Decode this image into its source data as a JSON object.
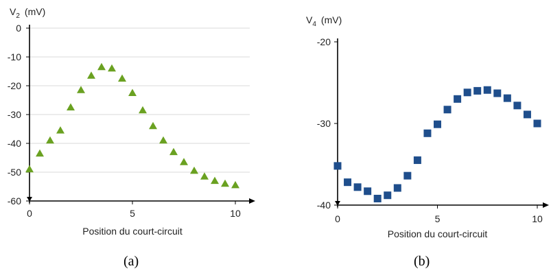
{
  "chart_data": [
    {
      "type": "scatter",
      "panel_label": "(a)",
      "ylabel_main": "V",
      "ylabel_sub": "2",
      "ylabel_unit": "(mV)",
      "xlabel": "Position du court-circuit",
      "xlim": [
        0,
        10
      ],
      "ylim": [
        -60,
        0
      ],
      "xticks": [
        "0",
        "5",
        "10"
      ],
      "yticks": [
        "0",
        "-10",
        "-20",
        "-30",
        "-40",
        "-50",
        "-60"
      ],
      "grid": true,
      "marker": "triangle",
      "color": "#6aa121",
      "series": [
        {
          "x": [
            0,
            0.5,
            1,
            1.5,
            2,
            2.5,
            3,
            3.5,
            4,
            4.5,
            5,
            5.5,
            6,
            6.5,
            7,
            7.5,
            8,
            8.5,
            9,
            9.5,
            10
          ],
          "y": [
            -49,
            -43.5,
            -39,
            -35.5,
            -27.5,
            -21.5,
            -16.5,
            -13.5,
            -14,
            -17.5,
            -22.5,
            -28.5,
            -34,
            -39,
            -43,
            -46.5,
            -49.5,
            -51.5,
            -53,
            -54,
            -54.5
          ]
        }
      ]
    },
    {
      "type": "scatter",
      "panel_label": "(b)",
      "ylabel_main": "V",
      "ylabel_sub": "4",
      "ylabel_unit": "(mV)",
      "xlabel": "Position du court-circuit",
      "xlim": [
        0,
        10
      ],
      "ylim": [
        -40,
        -20
      ],
      "xticks": [
        "0",
        "5",
        "10"
      ],
      "yticks": [
        "-20",
        "-30",
        "-40"
      ],
      "grid": false,
      "marker": "square",
      "color": "#1f4e8c",
      "series": [
        {
          "x": [
            0,
            0.5,
            1,
            1.5,
            2,
            2.5,
            3,
            3.5,
            4,
            4.5,
            5,
            5.5,
            6,
            6.5,
            7,
            7.5,
            8,
            8.5,
            9,
            9.5,
            10
          ],
          "y": [
            -35.2,
            -37.2,
            -37.8,
            -38.3,
            -39.2,
            -38.8,
            -37.9,
            -36.4,
            -34.5,
            -31.2,
            -30.1,
            -28.3,
            -27,
            -26.2,
            -26,
            -25.9,
            -26.3,
            -26.9,
            -27.8,
            -28.9,
            -30
          ]
        }
      ]
    }
  ]
}
